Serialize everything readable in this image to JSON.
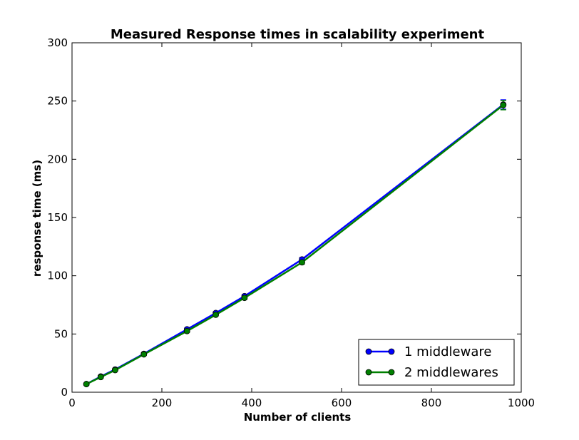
{
  "chart_data": {
    "type": "line",
    "title": "Measured Response times in scalability experiment",
    "xlabel": "Number of clients",
    "ylabel": "response time (ms)",
    "xlim": [
      0,
      1000
    ],
    "ylim": [
      0,
      300
    ],
    "x_ticks": [
      0,
      200,
      400,
      600,
      800,
      1000
    ],
    "y_ticks": [
      0,
      50,
      100,
      150,
      200,
      250,
      300
    ],
    "grid": false,
    "legend_position": "lower right",
    "x": [
      32,
      64,
      96,
      160,
      256,
      320,
      384,
      512,
      960
    ],
    "series": [
      {
        "name": "1 middleware",
        "color": "#0000ff",
        "values": [
          7,
          13.5,
          19.5,
          33,
          54,
          68,
          82.5,
          114,
          247
        ],
        "error": [
          0.5,
          0.5,
          0.5,
          0.8,
          1,
          1,
          1.2,
          1.5,
          4
        ]
      },
      {
        "name": "2 middlewares",
        "color": "#008000",
        "values": [
          7,
          13,
          19,
          32.5,
          52.5,
          66.5,
          81,
          111.5,
          246.5
        ],
        "error": [
          0.5,
          0.5,
          0.5,
          0.8,
          1,
          1,
          1.2,
          1.5,
          4
        ]
      }
    ]
  }
}
